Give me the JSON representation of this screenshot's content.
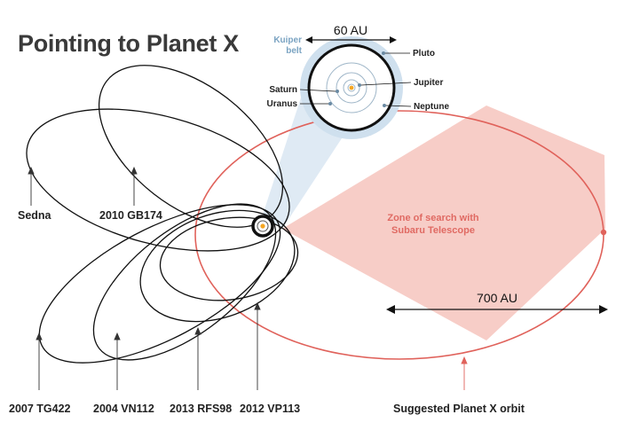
{
  "title": "Pointing to Planet X",
  "scale_labels": {
    "inner": "60 AU",
    "outer": "700 AU"
  },
  "kuiper_belt": {
    "line1": "Kuiper",
    "line2": "belt"
  },
  "planets": {
    "pluto": "Pluto",
    "jupiter": "Jupiter",
    "saturn": "Saturn",
    "uranus": "Uranus",
    "neptune": "Neptune"
  },
  "search_zone": {
    "line1": "Zone of search with",
    "line2": "Subaru Telescope"
  },
  "objects": {
    "sedna": "Sedna",
    "gb174": "2010 GB174",
    "tg422": "2007 TG422",
    "vn112": "2004 VN112",
    "rfs98": "2013 RFS98",
    "vp113": "2012 VP113",
    "planet_x": "Suggested Planet X orbit"
  },
  "colors": {
    "orbit": "#111111",
    "planet_x": "#e0625b",
    "search_zone": "#f6c4bd",
    "kuiper_belt": "#cfe0ee",
    "zoom_cone": "#dbe8f3",
    "sun": "#f5a623"
  }
}
